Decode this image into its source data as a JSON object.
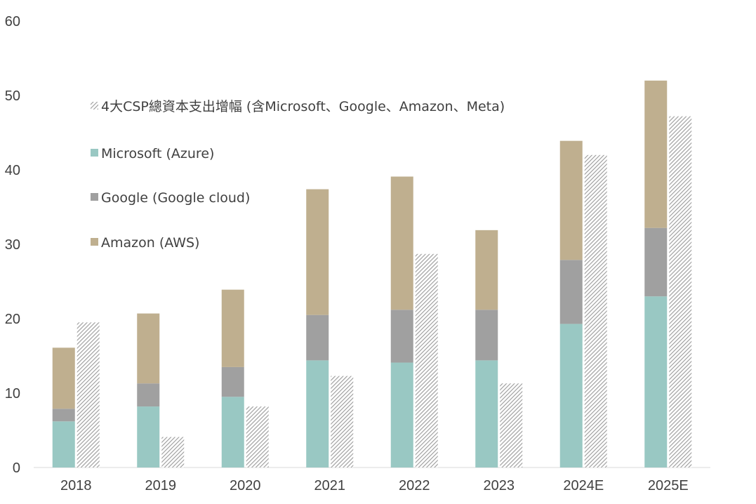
{
  "chart_data": {
    "type": "bar",
    "stacked": true,
    "categories": [
      "2018",
      "2019",
      "2020",
      "2021",
      "2022",
      "2023",
      "2024E",
      "2025E"
    ],
    "ylim": [
      0,
      60
    ],
    "yticks": [
      "0",
      "10",
      "20",
      "30",
      "40",
      "50",
      "60"
    ],
    "grid": false,
    "legend_position": "top-left",
    "series": [
      {
        "name": "Microsoft (Azure)",
        "stack": "cloud",
        "color": "#99C8C3",
        "values": [
          6.2,
          8.2,
          9.5,
          14.4,
          14.1,
          14.4,
          19.3,
          23.0
        ]
      },
      {
        "name": "Google (Google cloud)",
        "stack": "cloud",
        "color": "#A0A0A0",
        "values": [
          1.7,
          3.1,
          4.0,
          6.1,
          7.1,
          6.8,
          8.6,
          9.2
        ]
      },
      {
        "name": "Amazon (AWS)",
        "stack": "cloud",
        "color": "#BFAF8F",
        "values": [
          8.2,
          9.4,
          10.4,
          16.9,
          17.9,
          10.7,
          16.0,
          19.8
        ]
      },
      {
        "name": "4大CSP總資本支出增幅 (含Microsoft、Google、Amazon、Meta)",
        "stack": "capex",
        "color": "#B0B0B0",
        "pattern": "diagonal-hatch",
        "values": [
          19.5,
          4.1,
          8.2,
          12.3,
          28.7,
          11.3,
          42.0,
          47.2
        ]
      }
    ],
    "legend_order": [
      3,
      0,
      1,
      2
    ]
  }
}
